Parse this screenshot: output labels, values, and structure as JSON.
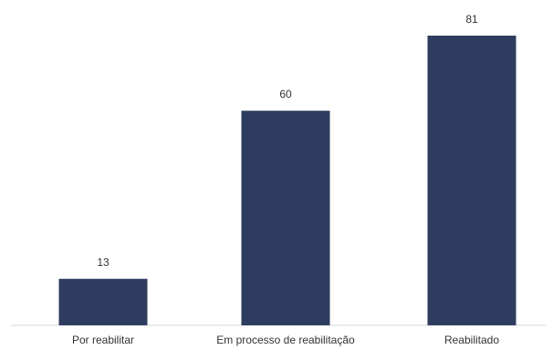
{
  "chart_data": {
    "type": "bar",
    "title": "",
    "xlabel": "",
    "ylabel": "",
    "categories": [
      "Por reabilitar",
      "Em processo de reabilitação",
      "Reabilitado"
    ],
    "values": [
      13,
      60,
      81
    ],
    "value_labels": [
      "13",
      "60",
      "81"
    ],
    "ylim": [
      0,
      81
    ],
    "grid": false,
    "legend": "none",
    "bar_color": "#2e3d5f",
    "axis_color": "#d6d6d6"
  }
}
